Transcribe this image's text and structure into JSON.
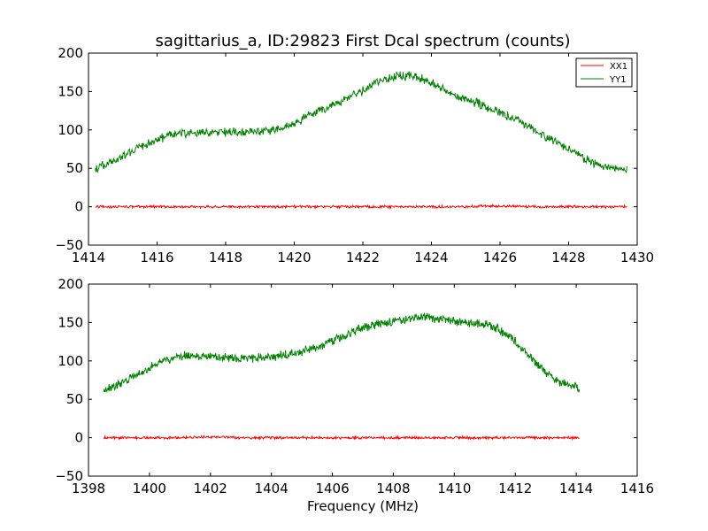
{
  "figure": {
    "title": "sagittarius_a, ID:29823 First Dcal spectrum (counts)",
    "xlabel": "Frequency (MHz)"
  },
  "legend": {
    "entries": [
      {
        "name": "XX1",
        "color": "#ff0000"
      },
      {
        "name": "YY1",
        "color": "#008000"
      }
    ]
  },
  "chart_data": [
    {
      "type": "line",
      "title": "sagittarius_a, ID:29823 First Dcal spectrum (counts)",
      "xlabel": "",
      "ylabel": "",
      "xlim": [
        1414,
        1430
      ],
      "ylim": [
        -50,
        200
      ],
      "xticks": [
        1414,
        1416,
        1418,
        1420,
        1422,
        1424,
        1426,
        1428,
        1430
      ],
      "yticks": [
        -50,
        0,
        50,
        100,
        150,
        200
      ],
      "legend": "top-right",
      "grid": false,
      "series": [
        {
          "name": "XX1",
          "color": "#ff0000",
          "x": [
            1414.2,
            1415,
            1416,
            1417,
            1418,
            1419,
            1420,
            1421,
            1422,
            1423,
            1424,
            1425,
            1426,
            1427,
            1428,
            1429,
            1429.7
          ],
          "y": [
            0,
            0,
            0,
            0,
            0,
            0,
            0,
            0,
            0,
            0,
            0,
            0,
            1,
            0,
            0,
            0,
            0
          ]
        },
        {
          "name": "YY1",
          "color": "#008000",
          "x": [
            1414.2,
            1414.5,
            1415,
            1415.5,
            1416,
            1416.5,
            1417,
            1417.5,
            1418,
            1418.5,
            1419,
            1419.5,
            1420,
            1420.5,
            1421,
            1421.5,
            1422,
            1422.5,
            1423,
            1423.5,
            1424,
            1424.5,
            1425,
            1425.5,
            1426,
            1426.5,
            1427,
            1427.5,
            1428,
            1428.5,
            1429,
            1429.7
          ],
          "y": [
            50,
            55,
            65,
            78,
            88,
            95,
            96,
            97,
            97,
            97,
            98,
            100,
            108,
            120,
            130,
            140,
            152,
            163,
            170,
            170,
            162,
            150,
            140,
            132,
            122,
            112,
            100,
            88,
            75,
            62,
            52,
            50
          ]
        }
      ]
    },
    {
      "type": "line",
      "title": "",
      "xlabel": "Frequency (MHz)",
      "ylabel": "",
      "xlim": [
        1398,
        1416
      ],
      "ylim": [
        -50,
        200
      ],
      "xticks": [
        1398,
        1400,
        1402,
        1404,
        1406,
        1408,
        1410,
        1412,
        1414,
        1416
      ],
      "yticks": [
        -50,
        0,
        50,
        100,
        150,
        200
      ],
      "grid": false,
      "series": [
        {
          "name": "XX1",
          "color": "#ff0000",
          "x": [
            1398.5,
            1399,
            1400,
            1401,
            1402,
            1403,
            1404,
            1405,
            1406,
            1407,
            1408,
            1409,
            1410,
            1411,
            1412,
            1413,
            1414.1
          ],
          "y": [
            0,
            0,
            0,
            0,
            1,
            0,
            0,
            0,
            0,
            0,
            0,
            0,
            0,
            0,
            0,
            0,
            0
          ]
        },
        {
          "name": "YY1",
          "color": "#008000",
          "x": [
            1398.5,
            1399,
            1399.5,
            1400,
            1400.5,
            1401,
            1401.5,
            1402,
            1402.5,
            1403,
            1403.5,
            1404,
            1404.5,
            1405,
            1405.5,
            1406,
            1406.5,
            1407,
            1407.5,
            1408,
            1408.5,
            1409,
            1409.5,
            1410,
            1410.5,
            1411,
            1411.5,
            1412,
            1412.5,
            1413,
            1413.5,
            1414.1
          ],
          "y": [
            62,
            70,
            80,
            92,
            100,
            107,
            107,
            106,
            104,
            103,
            104,
            105,
            108,
            112,
            118,
            126,
            135,
            143,
            148,
            152,
            155,
            157,
            155,
            152,
            150,
            148,
            140,
            125,
            105,
            85,
            72,
            65
          ]
        }
      ]
    }
  ]
}
